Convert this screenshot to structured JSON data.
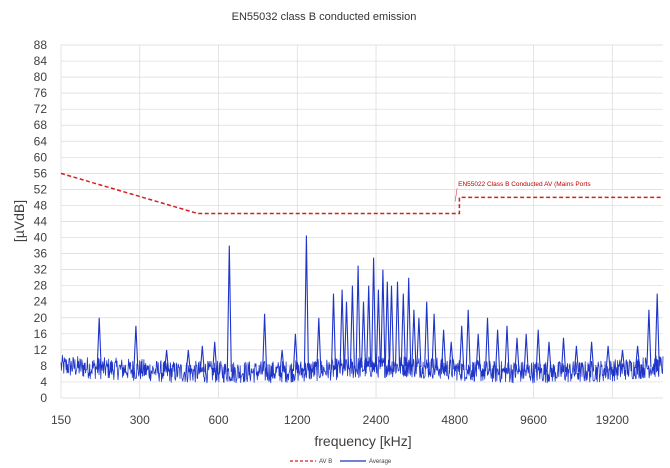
{
  "chart_data": {
    "type": "line",
    "title": "EN55032 class B conducted emission",
    "xlabel": "frequency [kHz]",
    "ylabel": "[µVdB]",
    "x_scale": "log2",
    "xlim": [
      150,
      30000
    ],
    "ylim": [
      0,
      88
    ],
    "x_ticks": [
      150,
      300,
      600,
      1200,
      2400,
      4800,
      9600,
      19200
    ],
    "y_ticks": [
      0,
      4,
      8,
      12,
      16,
      20,
      24,
      28,
      32,
      36,
      40,
      44,
      48,
      52,
      56,
      60,
      64,
      68,
      72,
      76,
      80,
      84,
      88
    ],
    "grid": true,
    "legend": {
      "position": "bottom",
      "entries": [
        "AV B",
        "Average"
      ]
    },
    "colors": {
      "limit": "#d42020",
      "average": "#1f35c8",
      "grid": "#d9d9d9"
    },
    "annotations": [
      {
        "text": "EN55022 Class B Conducted AV (Mains Ports",
        "x": 4900,
        "y": 52.5
      }
    ],
    "series": [
      {
        "name": "AV B",
        "style": "dashed",
        "x": [
          150,
          500,
          5000,
          5000,
          30000
        ],
        "values": [
          56,
          46,
          46,
          50,
          50
        ]
      },
      {
        "name": "Average",
        "style": "solid",
        "baseline": [
          [
            150,
            8
          ],
          [
            200,
            7.5
          ],
          [
            300,
            7
          ],
          [
            400,
            6.5
          ],
          [
            500,
            6.5
          ],
          [
            700,
            6.5
          ],
          [
            1000,
            6.5
          ],
          [
            1500,
            7
          ],
          [
            2000,
            7.5
          ],
          [
            3000,
            8
          ],
          [
            4000,
            7.5
          ],
          [
            5000,
            7
          ],
          [
            7000,
            6.5
          ],
          [
            10000,
            6.5
          ],
          [
            15000,
            6.5
          ],
          [
            20000,
            7
          ],
          [
            30000,
            8
          ]
        ],
        "peaks": [
          [
            210,
            20
          ],
          [
            290,
            18
          ],
          [
            380,
            12
          ],
          [
            460,
            12
          ],
          [
            520,
            13
          ],
          [
            580,
            14
          ],
          [
            660,
            38
          ],
          [
            900,
            21
          ],
          [
            1050,
            12
          ],
          [
            1180,
            16
          ],
          [
            1300,
            40.5
          ],
          [
            1450,
            20
          ],
          [
            1650,
            26
          ],
          [
            1780,
            27
          ],
          [
            1850,
            24
          ],
          [
            1950,
            28
          ],
          [
            2050,
            33
          ],
          [
            2150,
            24
          ],
          [
            2250,
            28
          ],
          [
            2350,
            35
          ],
          [
            2450,
            27
          ],
          [
            2550,
            32
          ],
          [
            2650,
            29
          ],
          [
            2750,
            28
          ],
          [
            2900,
            29
          ],
          [
            3050,
            26
          ],
          [
            3200,
            30
          ],
          [
            3350,
            22
          ],
          [
            3500,
            20
          ],
          [
            3750,
            24
          ],
          [
            4000,
            21
          ],
          [
            4350,
            17
          ],
          [
            4650,
            14
          ],
          [
            5100,
            18
          ],
          [
            5400,
            22
          ],
          [
            5900,
            16
          ],
          [
            6400,
            20
          ],
          [
            7000,
            17
          ],
          [
            7600,
            18
          ],
          [
            8300,
            15
          ],
          [
            9000,
            16
          ],
          [
            10000,
            17
          ],
          [
            11000,
            14
          ],
          [
            12500,
            15
          ],
          [
            14000,
            13
          ],
          [
            16000,
            14
          ],
          [
            18500,
            13
          ],
          [
            21000,
            12
          ],
          [
            24000,
            13
          ],
          [
            26500,
            22
          ],
          [
            28500,
            26
          ]
        ]
      }
    ]
  }
}
